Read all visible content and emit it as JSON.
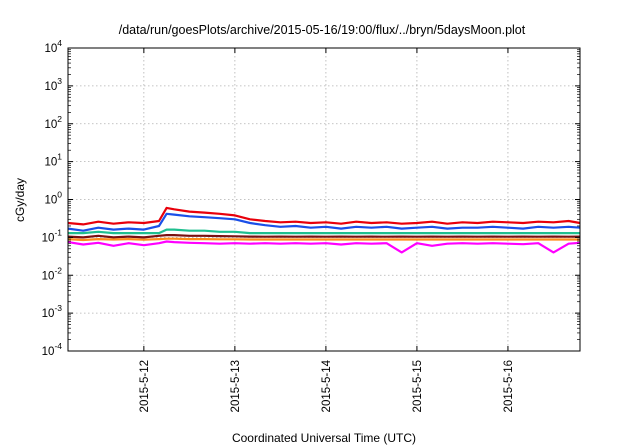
{
  "chart_data": {
    "type": "line",
    "title": "/data/run/goesPlots/archive/2015-05-16/19:00/flux/../bryn/5daysMoon.plot",
    "xlabel": "Coordinated Universal Time (UTC)",
    "ylabel": "cGy/day",
    "yscale": "log",
    "ylim": [
      0.0001,
      10000
    ],
    "xlim": [
      "2015-05-11T04:00",
      "2015-05-16T19:00"
    ],
    "grid": true,
    "y_ticks": [
      {
        "base": "10",
        "exp": "-4",
        "value": 0.0001
      },
      {
        "base": "10",
        "exp": "-3",
        "value": 0.001
      },
      {
        "base": "10",
        "exp": "-2",
        "value": 0.01
      },
      {
        "base": "10",
        "exp": "-1",
        "value": 0.1
      },
      {
        "base": "10",
        "exp": "0",
        "value": 1
      },
      {
        "base": "10",
        "exp": "1",
        "value": 10
      },
      {
        "base": "10",
        "exp": "2",
        "value": 100
      },
      {
        "base": "10",
        "exp": "3",
        "value": 1000
      },
      {
        "base": "10",
        "exp": "4",
        "value": 10000
      }
    ],
    "x_ticks": [
      {
        "label": "2015-5-12",
        "date": "2015-05-12T00:00"
      },
      {
        "label": "2015-5-13",
        "date": "2015-05-13T00:00"
      },
      {
        "label": "2015-5-14",
        "date": "2015-05-14T00:00"
      },
      {
        "label": "2015-5-15",
        "date": "2015-05-15T00:00"
      },
      {
        "label": "2015-5-16",
        "date": "2015-05-16T00:00"
      }
    ],
    "x": [
      "2015-05-11T04:00",
      "2015-05-11T08:00",
      "2015-05-11T12:00",
      "2015-05-11T16:00",
      "2015-05-11T20:00",
      "2015-05-12T00:00",
      "2015-05-12T04:00",
      "2015-05-12T06:00",
      "2015-05-12T08:00",
      "2015-05-12T12:00",
      "2015-05-12T16:00",
      "2015-05-12T20:00",
      "2015-05-13T00:00",
      "2015-05-13T04:00",
      "2015-05-13T08:00",
      "2015-05-13T12:00",
      "2015-05-13T16:00",
      "2015-05-13T20:00",
      "2015-05-14T00:00",
      "2015-05-14T04:00",
      "2015-05-14T08:00",
      "2015-05-14T12:00",
      "2015-05-14T16:00",
      "2015-05-14T20:00",
      "2015-05-15T00:00",
      "2015-05-15T04:00",
      "2015-05-15T08:00",
      "2015-05-15T12:00",
      "2015-05-15T16:00",
      "2015-05-15T20:00",
      "2015-05-16T00:00",
      "2015-05-16T04:00",
      "2015-05-16T08:00",
      "2015-05-16T12:00",
      "2015-05-16T16:00",
      "2015-05-16T19:00"
    ],
    "series": [
      {
        "color": "#e8000b",
        "values": [
          0.24,
          0.22,
          0.26,
          0.23,
          0.25,
          0.24,
          0.27,
          0.6,
          0.55,
          0.48,
          0.45,
          0.42,
          0.38,
          0.3,
          0.27,
          0.25,
          0.26,
          0.24,
          0.25,
          0.23,
          0.26,
          0.24,
          0.25,
          0.23,
          0.24,
          0.26,
          0.23,
          0.25,
          0.24,
          0.26,
          0.25,
          0.24,
          0.26,
          0.25,
          0.27,
          0.24
        ]
      },
      {
        "color": "#1a4fe8",
        "values": [
          0.17,
          0.15,
          0.18,
          0.16,
          0.17,
          0.16,
          0.2,
          0.42,
          0.4,
          0.36,
          0.34,
          0.32,
          0.3,
          0.24,
          0.21,
          0.19,
          0.2,
          0.18,
          0.19,
          0.17,
          0.19,
          0.18,
          0.19,
          0.17,
          0.18,
          0.19,
          0.17,
          0.18,
          0.18,
          0.19,
          0.18,
          0.17,
          0.19,
          0.18,
          0.19,
          0.18
        ]
      },
      {
        "color": "#1fbf8f",
        "values": [
          0.13,
          0.13,
          0.14,
          0.13,
          0.13,
          0.13,
          0.13,
          0.16,
          0.16,
          0.15,
          0.15,
          0.14,
          0.14,
          0.13,
          0.13,
          0.13,
          0.13,
          0.13,
          0.13,
          0.13,
          0.13,
          0.13,
          0.13,
          0.13,
          0.13,
          0.13,
          0.13,
          0.13,
          0.13,
          0.13,
          0.13,
          0.13,
          0.13,
          0.13,
          0.13,
          0.13
        ]
      },
      {
        "color": "#7a1010",
        "values": [
          0.105,
          0.1,
          0.11,
          0.1,
          0.105,
          0.1,
          0.11,
          0.115,
          0.115,
          0.11,
          0.11,
          0.108,
          0.107,
          0.105,
          0.104,
          0.105,
          0.104,
          0.105,
          0.104,
          0.105,
          0.104,
          0.105,
          0.104,
          0.105,
          0.104,
          0.105,
          0.104,
          0.105,
          0.104,
          0.105,
          0.104,
          0.105,
          0.104,
          0.105,
          0.104,
          0.105
        ]
      },
      {
        "color": "#ff8c1a",
        "values": [
          0.09,
          0.085,
          0.09,
          0.088,
          0.09,
          0.087,
          0.09,
          0.092,
          0.092,
          0.09,
          0.09,
          0.089,
          0.089,
          0.088,
          0.088,
          0.088,
          0.088,
          0.088,
          0.088,
          0.088,
          0.088,
          0.088,
          0.088,
          0.088,
          0.088,
          0.088,
          0.088,
          0.088,
          0.088,
          0.088,
          0.088,
          0.088,
          0.088,
          0.088,
          0.088,
          0.088
        ]
      },
      {
        "color": "#ff00ff",
        "values": [
          0.075,
          0.065,
          0.072,
          0.06,
          0.07,
          0.062,
          0.07,
          0.078,
          0.075,
          0.072,
          0.07,
          0.068,
          0.07,
          0.068,
          0.07,
          0.068,
          0.07,
          0.068,
          0.07,
          0.065,
          0.07,
          0.068,
          0.07,
          0.04,
          0.07,
          0.06,
          0.068,
          0.07,
          0.068,
          0.07,
          0.068,
          0.066,
          0.07,
          0.04,
          0.068,
          0.072
        ]
      }
    ]
  }
}
